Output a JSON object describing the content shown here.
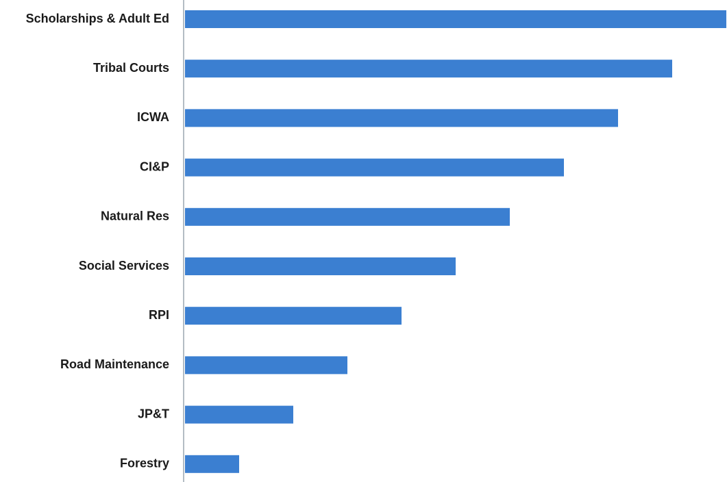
{
  "chart_data": {
    "type": "barh",
    "categories": [
      "Scholarships & Adult Ed",
      "Tribal Courts",
      "ICWA",
      "CI&P",
      "Natural Res",
      "Social Services",
      "RPI",
      "Road Maintenance",
      "JP&T",
      "Forestry"
    ],
    "values": [
      10,
      9,
      8,
      7,
      6,
      5,
      4,
      3,
      2,
      1
    ],
    "color": "#3b7fd1",
    "xlim": [
      0,
      10
    ]
  }
}
